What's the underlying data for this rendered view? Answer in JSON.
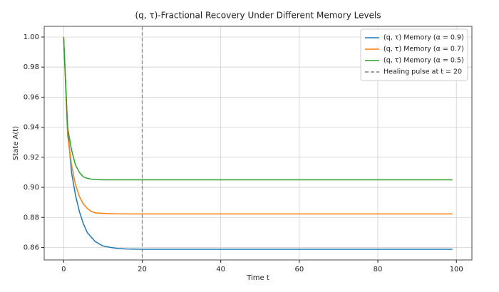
{
  "chart_data": {
    "type": "line",
    "title": "(q, τ)-Fractional Recovery Under Different Memory Levels",
    "xlabel": "Time t",
    "ylabel": "State A(t)",
    "x": [
      0,
      1,
      2,
      3,
      4,
      5,
      6,
      7,
      8,
      10,
      12,
      14,
      16,
      20,
      30,
      40,
      50,
      60,
      70,
      80,
      90,
      99
    ],
    "series": [
      {
        "name": "(q, τ) Memory (α = 0.9)",
        "color": "#1f77b4",
        "values": [
          1.0,
          0.94,
          0.91,
          0.895,
          0.884,
          0.876,
          0.87,
          0.867,
          0.864,
          0.861,
          0.86,
          0.8593,
          0.859,
          0.8588,
          0.8588,
          0.8588,
          0.8588,
          0.8588,
          0.8588,
          0.8588,
          0.8588,
          0.8588
        ]
      },
      {
        "name": "(q, τ) Memory (α = 0.7)",
        "color": "#ff7f0e",
        "values": [
          1.0,
          0.935,
          0.915,
          0.902,
          0.894,
          0.889,
          0.886,
          0.884,
          0.883,
          0.8827,
          0.8825,
          0.8824,
          0.8823,
          0.8823,
          0.8823,
          0.8823,
          0.8823,
          0.8823,
          0.8823,
          0.8823,
          0.8823,
          0.8823
        ]
      },
      {
        "name": "(q, τ) Memory (α = 0.5)",
        "color": "#2ca02c",
        "values": [
          1.0,
          0.94,
          0.925,
          0.915,
          0.91,
          0.907,
          0.906,
          0.9055,
          0.9052,
          0.905,
          0.905,
          0.905,
          0.905,
          0.905,
          0.905,
          0.905,
          0.905,
          0.905,
          0.905,
          0.905,
          0.905,
          0.905
        ]
      }
    ],
    "vline": {
      "x": 20,
      "label": "Healing pulse at t = 20",
      "color": "#7f7f7f"
    },
    "xlim": [
      -4.95,
      103.95
    ],
    "xticks": [
      0,
      20,
      40,
      60,
      80,
      100
    ],
    "ylim": [
      0.8517,
      1.0071
    ],
    "yticks": [
      {
        "value": 0.86,
        "label": "0.86"
      },
      {
        "value": 0.88,
        "label": "0.88"
      },
      {
        "value": 0.9,
        "label": "0.90"
      },
      0.92,
      0.94,
      0.96,
      0.98,
      {
        "value": 1.0,
        "label": "1.00"
      }
    ],
    "grid": true,
    "legend": "upper right"
  }
}
